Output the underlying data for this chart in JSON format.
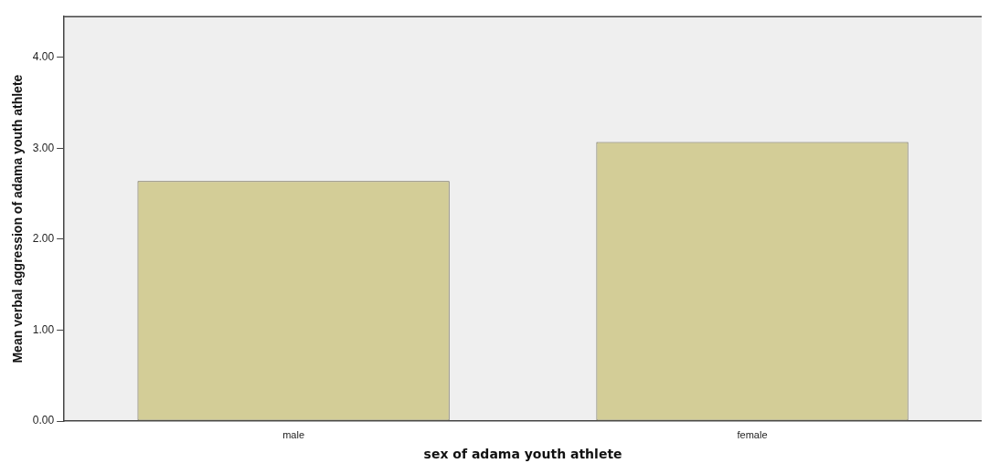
{
  "chart_data": {
    "type": "bar",
    "categories": [
      "male",
      "female"
    ],
    "values": [
      2.64,
      3.07
    ],
    "color": "#d3cd97",
    "xlabel": "sex of adama youth athlete",
    "ylabel": "Mean verbal aggression of adama youth athlete",
    "ylim": [
      0,
      4.45
    ],
    "yticks": [
      {
        "value": 0,
        "label": "0.00"
      },
      {
        "value": 1,
        "label": "1.00"
      },
      {
        "value": 2,
        "label": "2.00"
      },
      {
        "value": 3,
        "label": "3.00"
      },
      {
        "value": 4,
        "label": "4.00"
      }
    ],
    "grid": false,
    "legend": false
  }
}
